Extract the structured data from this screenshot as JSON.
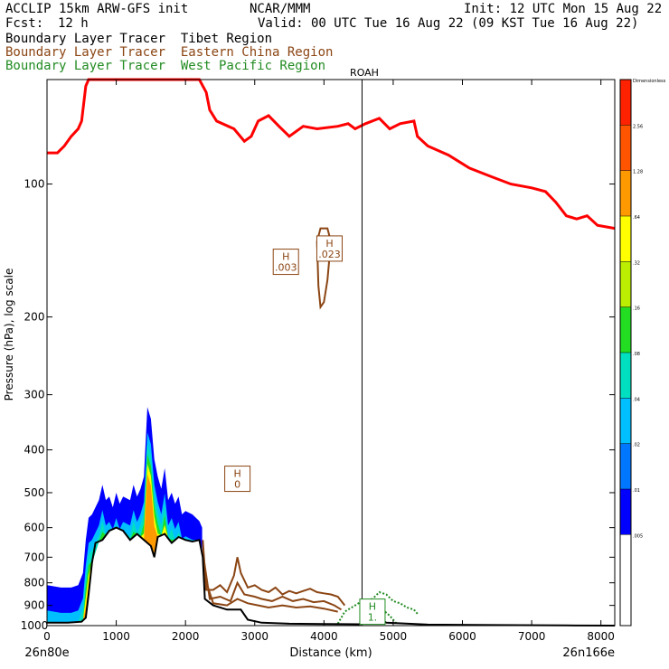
{
  "header": {
    "model": "ACCLIP 15km ARW-GFS init",
    "org": "NCAR/MMM",
    "init": "Init: 12 UTC Mon 15 Aug 22",
    "fcst_label": "Fcst:",
    "fcst_value": "12 h",
    "valid": "Valid: 00 UTC Tue 16 Aug 22 (09 KST Tue 16 Aug 22)",
    "tracers": [
      {
        "text": "Boundary Layer Tracer  Tibet Region",
        "color": "#000000"
      },
      {
        "text": "Boundary Layer Tracer  Eastern China Region",
        "color": "#8b4513"
      },
      {
        "text": "Boundary Layer Tracer  West Pacific Region",
        "color": "#228b22"
      }
    ]
  },
  "chart_data": {
    "type": "line",
    "title": "",
    "xlabel": "Distance (km)",
    "ylabel": "Pressure (hPa), log scale",
    "xlim": [
      0,
      8200
    ],
    "ylim": [
      1000,
      58
    ],
    "y_scale": "log",
    "x_ticks": [
      0,
      1000,
      2000,
      3000,
      4000,
      5000,
      6000,
      7000,
      8000
    ],
    "x_tick_labels": [
      "0",
      "1000",
      "2000",
      "3000",
      "4000",
      "5000",
      "6000",
      "7000",
      "8000"
    ],
    "y_ticks": [
      100,
      200,
      300,
      400,
      500,
      600,
      700,
      800,
      900,
      1000
    ],
    "y_tick_labels": [
      "100",
      "200",
      "300",
      "400",
      "500",
      "600",
      "700",
      "800",
      "900",
      "1000"
    ],
    "x_end_labels": {
      "left": "26n80e",
      "right": "26n166e"
    },
    "marker": {
      "label": "ROAH",
      "x": 4550
    },
    "tropopause": {
      "name": "tropopause",
      "color": "#ff0000",
      "points": [
        [
          0,
          85
        ],
        [
          150,
          85
        ],
        [
          250,
          82
        ],
        [
          350,
          78
        ],
        [
          450,
          75
        ],
        [
          500,
          72
        ],
        [
          560,
          60
        ],
        [
          600,
          55
        ],
        [
          2200,
          55
        ],
        [
          2300,
          62
        ],
        [
          2350,
          68
        ],
        [
          2450,
          72
        ],
        [
          2700,
          75
        ],
        [
          2850,
          80
        ],
        [
          2950,
          78
        ],
        [
          3050,
          72
        ],
        [
          3200,
          70
        ],
        [
          3350,
          74
        ],
        [
          3500,
          78
        ],
        [
          3700,
          74
        ],
        [
          3900,
          75
        ],
        [
          4200,
          74
        ],
        [
          4350,
          73
        ],
        [
          4450,
          75
        ],
        [
          4600,
          73
        ],
        [
          4800,
          71
        ],
        [
          4950,
          75
        ],
        [
          5100,
          73
        ],
        [
          5300,
          72
        ],
        [
          5350,
          78
        ],
        [
          5500,
          82
        ],
        [
          5800,
          86
        ],
        [
          6100,
          92
        ],
        [
          6400,
          96
        ],
        [
          6700,
          100
        ],
        [
          7000,
          102
        ],
        [
          7200,
          104
        ],
        [
          7350,
          110
        ],
        [
          7500,
          118
        ],
        [
          7650,
          120
        ],
        [
          7800,
          118
        ],
        [
          7950,
          124
        ],
        [
          8200,
          126
        ]
      ]
    },
    "terrain": {
      "name": "terrain",
      "color": "#000000",
      "points": [
        [
          0,
          985
        ],
        [
          300,
          985
        ],
        [
          500,
          980
        ],
        [
          560,
          960
        ],
        [
          600,
          850
        ],
        [
          650,
          720
        ],
        [
          700,
          650
        ],
        [
          800,
          640
        ],
        [
          900,
          610
        ],
        [
          1000,
          600
        ],
        [
          1100,
          610
        ],
        [
          1200,
          640
        ],
        [
          1300,
          620
        ],
        [
          1400,
          640
        ],
        [
          1500,
          660
        ],
        [
          1550,
          700
        ],
        [
          1600,
          630
        ],
        [
          1700,
          620
        ],
        [
          1800,
          650
        ],
        [
          1900,
          630
        ],
        [
          2000,
          640
        ],
        [
          2100,
          645
        ],
        [
          2200,
          640
        ],
        [
          2250,
          700
        ],
        [
          2280,
          870
        ],
        [
          2400,
          900
        ],
        [
          2600,
          920
        ],
        [
          2800,
          920
        ],
        [
          2900,
          970
        ],
        [
          3100,
          985
        ],
        [
          3500,
          990
        ],
        [
          4000,
          992
        ],
        [
          4500,
          993
        ],
        [
          4700,
          985
        ],
        [
          4800,
          960
        ],
        [
          4900,
          985
        ],
        [
          5500,
          995
        ],
        [
          6500,
          997
        ],
        [
          7500,
          999
        ],
        [
          8200,
          1000
        ]
      ]
    },
    "tibet_tracer_top": {
      "name": "Boundary Layer Tracer  Tibet Region",
      "points": [
        [
          0,
          810
        ],
        [
          200,
          820
        ],
        [
          350,
          820
        ],
        [
          450,
          810
        ],
        [
          520,
          760
        ],
        [
          560,
          640
        ],
        [
          600,
          570
        ],
        [
          650,
          560
        ],
        [
          750,
          520
        ],
        [
          800,
          480
        ],
        [
          850,
          520
        ],
        [
          900,
          510
        ],
        [
          950,
          540
        ],
        [
          1000,
          500
        ],
        [
          1050,
          530
        ],
        [
          1100,
          510
        ],
        [
          1200,
          520
        ],
        [
          1250,
          480
        ],
        [
          1300,
          510
        ],
        [
          1350,
          490
        ],
        [
          1400,
          460
        ],
        [
          1450,
          320
        ],
        [
          1500,
          340
        ],
        [
          1550,
          420
        ],
        [
          1600,
          460
        ],
        [
          1650,
          490
        ],
        [
          1700,
          440
        ],
        [
          1750,
          520
        ],
        [
          1800,
          500
        ],
        [
          1850,
          530
        ],
        [
          1900,
          510
        ],
        [
          1950,
          560
        ],
        [
          2000,
          550
        ],
        [
          2100,
          560
        ],
        [
          2200,
          580
        ],
        [
          2240,
          600
        ]
      ]
    },
    "tibet_tracer_bands": [
      {
        "level": 0.04,
        "color": "#0000ff",
        "offset": 15
      },
      {
        "level": 0.08,
        "color": "#00bfff",
        "offset": 28
      },
      {
        "level": 0.16,
        "color": "#00e0c0",
        "offset": 40
      },
      {
        "level": 0.3,
        "color": "#22dd22",
        "offset": 52
      },
      {
        "level": 0.54,
        "color": "#ffff00",
        "offset": 63
      },
      {
        "level": 1.28,
        "color": "#ff9900",
        "offset": 74
      }
    ],
    "eastern_china_contours": [
      {
        "name": "Boundary Layer Tracer  Eastern China Region",
        "color": "#8b4513",
        "points": [
          [
            2250,
            640
          ],
          [
            2300,
            830
          ],
          [
            2400,
            830
          ],
          [
            2500,
            810
          ],
          [
            2600,
            840
          ],
          [
            2700,
            770
          ],
          [
            2750,
            700
          ],
          [
            2800,
            760
          ],
          [
            2900,
            820
          ],
          [
            3000,
            810
          ],
          [
            3100,
            830
          ],
          [
            3200,
            840
          ],
          [
            3300,
            820
          ],
          [
            3400,
            850
          ],
          [
            3500,
            835
          ],
          [
            3600,
            845
          ],
          [
            3700,
            835
          ],
          [
            3800,
            825
          ],
          [
            3900,
            840
          ],
          [
            4000,
            845
          ],
          [
            4100,
            850
          ],
          [
            4200,
            860
          ],
          [
            4300,
            900
          ]
        ]
      },
      {
        "name": "Boundary Layer Tracer  Eastern China Region",
        "color": "#8b4513",
        "points": [
          [
            2260,
            700
          ],
          [
            2350,
            870
          ],
          [
            2500,
            860
          ],
          [
            2650,
            880
          ],
          [
            2750,
            800
          ],
          [
            2850,
            850
          ],
          [
            3000,
            860
          ],
          [
            3100,
            870
          ],
          [
            3250,
            880
          ],
          [
            3400,
            860
          ],
          [
            3550,
            880
          ],
          [
            3700,
            870
          ],
          [
            3850,
            885
          ],
          [
            4000,
            880
          ],
          [
            4150,
            900
          ],
          [
            4250,
            920
          ]
        ]
      },
      {
        "name": "Boundary Layer Tracer  Eastern China Region",
        "color": "#8b4513",
        "points": [
          [
            2280,
            780
          ],
          [
            2400,
            890
          ],
          [
            2600,
            900
          ],
          [
            2750,
            870
          ],
          [
            2900,
            890
          ],
          [
            3050,
            900
          ],
          [
            3200,
            910
          ],
          [
            3400,
            900
          ],
          [
            3600,
            910
          ],
          [
            3800,
            905
          ],
          [
            4000,
            915
          ],
          [
            4200,
            930
          ]
        ]
      },
      {
        "name": "Boundary Layer Tracer  Eastern China Region",
        "color": "#8b4513",
        "points": [
          [
            3900,
            135
          ],
          [
            3950,
            126
          ],
          [
            4050,
            126
          ],
          [
            4100,
            135
          ],
          [
            4050,
            165
          ],
          [
            4000,
            185
          ],
          [
            3950,
            190
          ],
          [
            3920,
            170
          ],
          [
            3900,
            135
          ]
        ]
      }
    ],
    "west_pacific_contours": [
      {
        "name": "Boundary Layer Tracer  West Pacific Region",
        "color": "#228b22",
        "points": [
          [
            4200,
            990
          ],
          [
            4300,
            930
          ],
          [
            4450,
            900
          ],
          [
            4550,
            880
          ],
          [
            4700,
            870
          ],
          [
            4800,
            840
          ],
          [
            4900,
            850
          ],
          [
            5000,
            880
          ],
          [
            5100,
            890
          ],
          [
            5200,
            910
          ],
          [
            5300,
            920
          ],
          [
            5350,
            940
          ]
        ]
      },
      {
        "name": "Boundary Layer Tracer  West Pacific Region",
        "color": "#228b22",
        "points": [
          [
            4650,
            990
          ],
          [
            4700,
            920
          ],
          [
            4750,
            910
          ],
          [
            4850,
            920
          ],
          [
            4950,
            950
          ],
          [
            5050,
            990
          ]
        ]
      }
    ],
    "annotations": [
      {
        "text": "H",
        "value": ".003",
        "x": 3450,
        "p": 150,
        "color": "#8b4513"
      },
      {
        "text": "H",
        "value": ".023",
        "x": 4080,
        "p": 140,
        "color": "#8b4513"
      },
      {
        "text": "H",
        "value": "0",
        "x": 2750,
        "p": 465,
        "color": "#8b4513"
      },
      {
        "text": "H",
        "value": "1.",
        "x": 4700,
        "p": 930,
        "color": "#228b22"
      }
    ],
    "colorbar": {
      "levels": [
        "Dimensionless",
        "2.56",
        "1.28",
        ".64",
        ".32",
        ".16",
        ".08",
        ".04",
        ".02",
        ".01",
        ".005"
      ],
      "colors": [
        "#ff2200",
        "#ff5500",
        "#ff9900",
        "#ffff00",
        "#bbee00",
        "#22dd22",
        "#00e0c0",
        "#00bfff",
        "#0077ff",
        "#0000ff",
        "#ffffff",
        "#ffffff"
      ]
    }
  }
}
